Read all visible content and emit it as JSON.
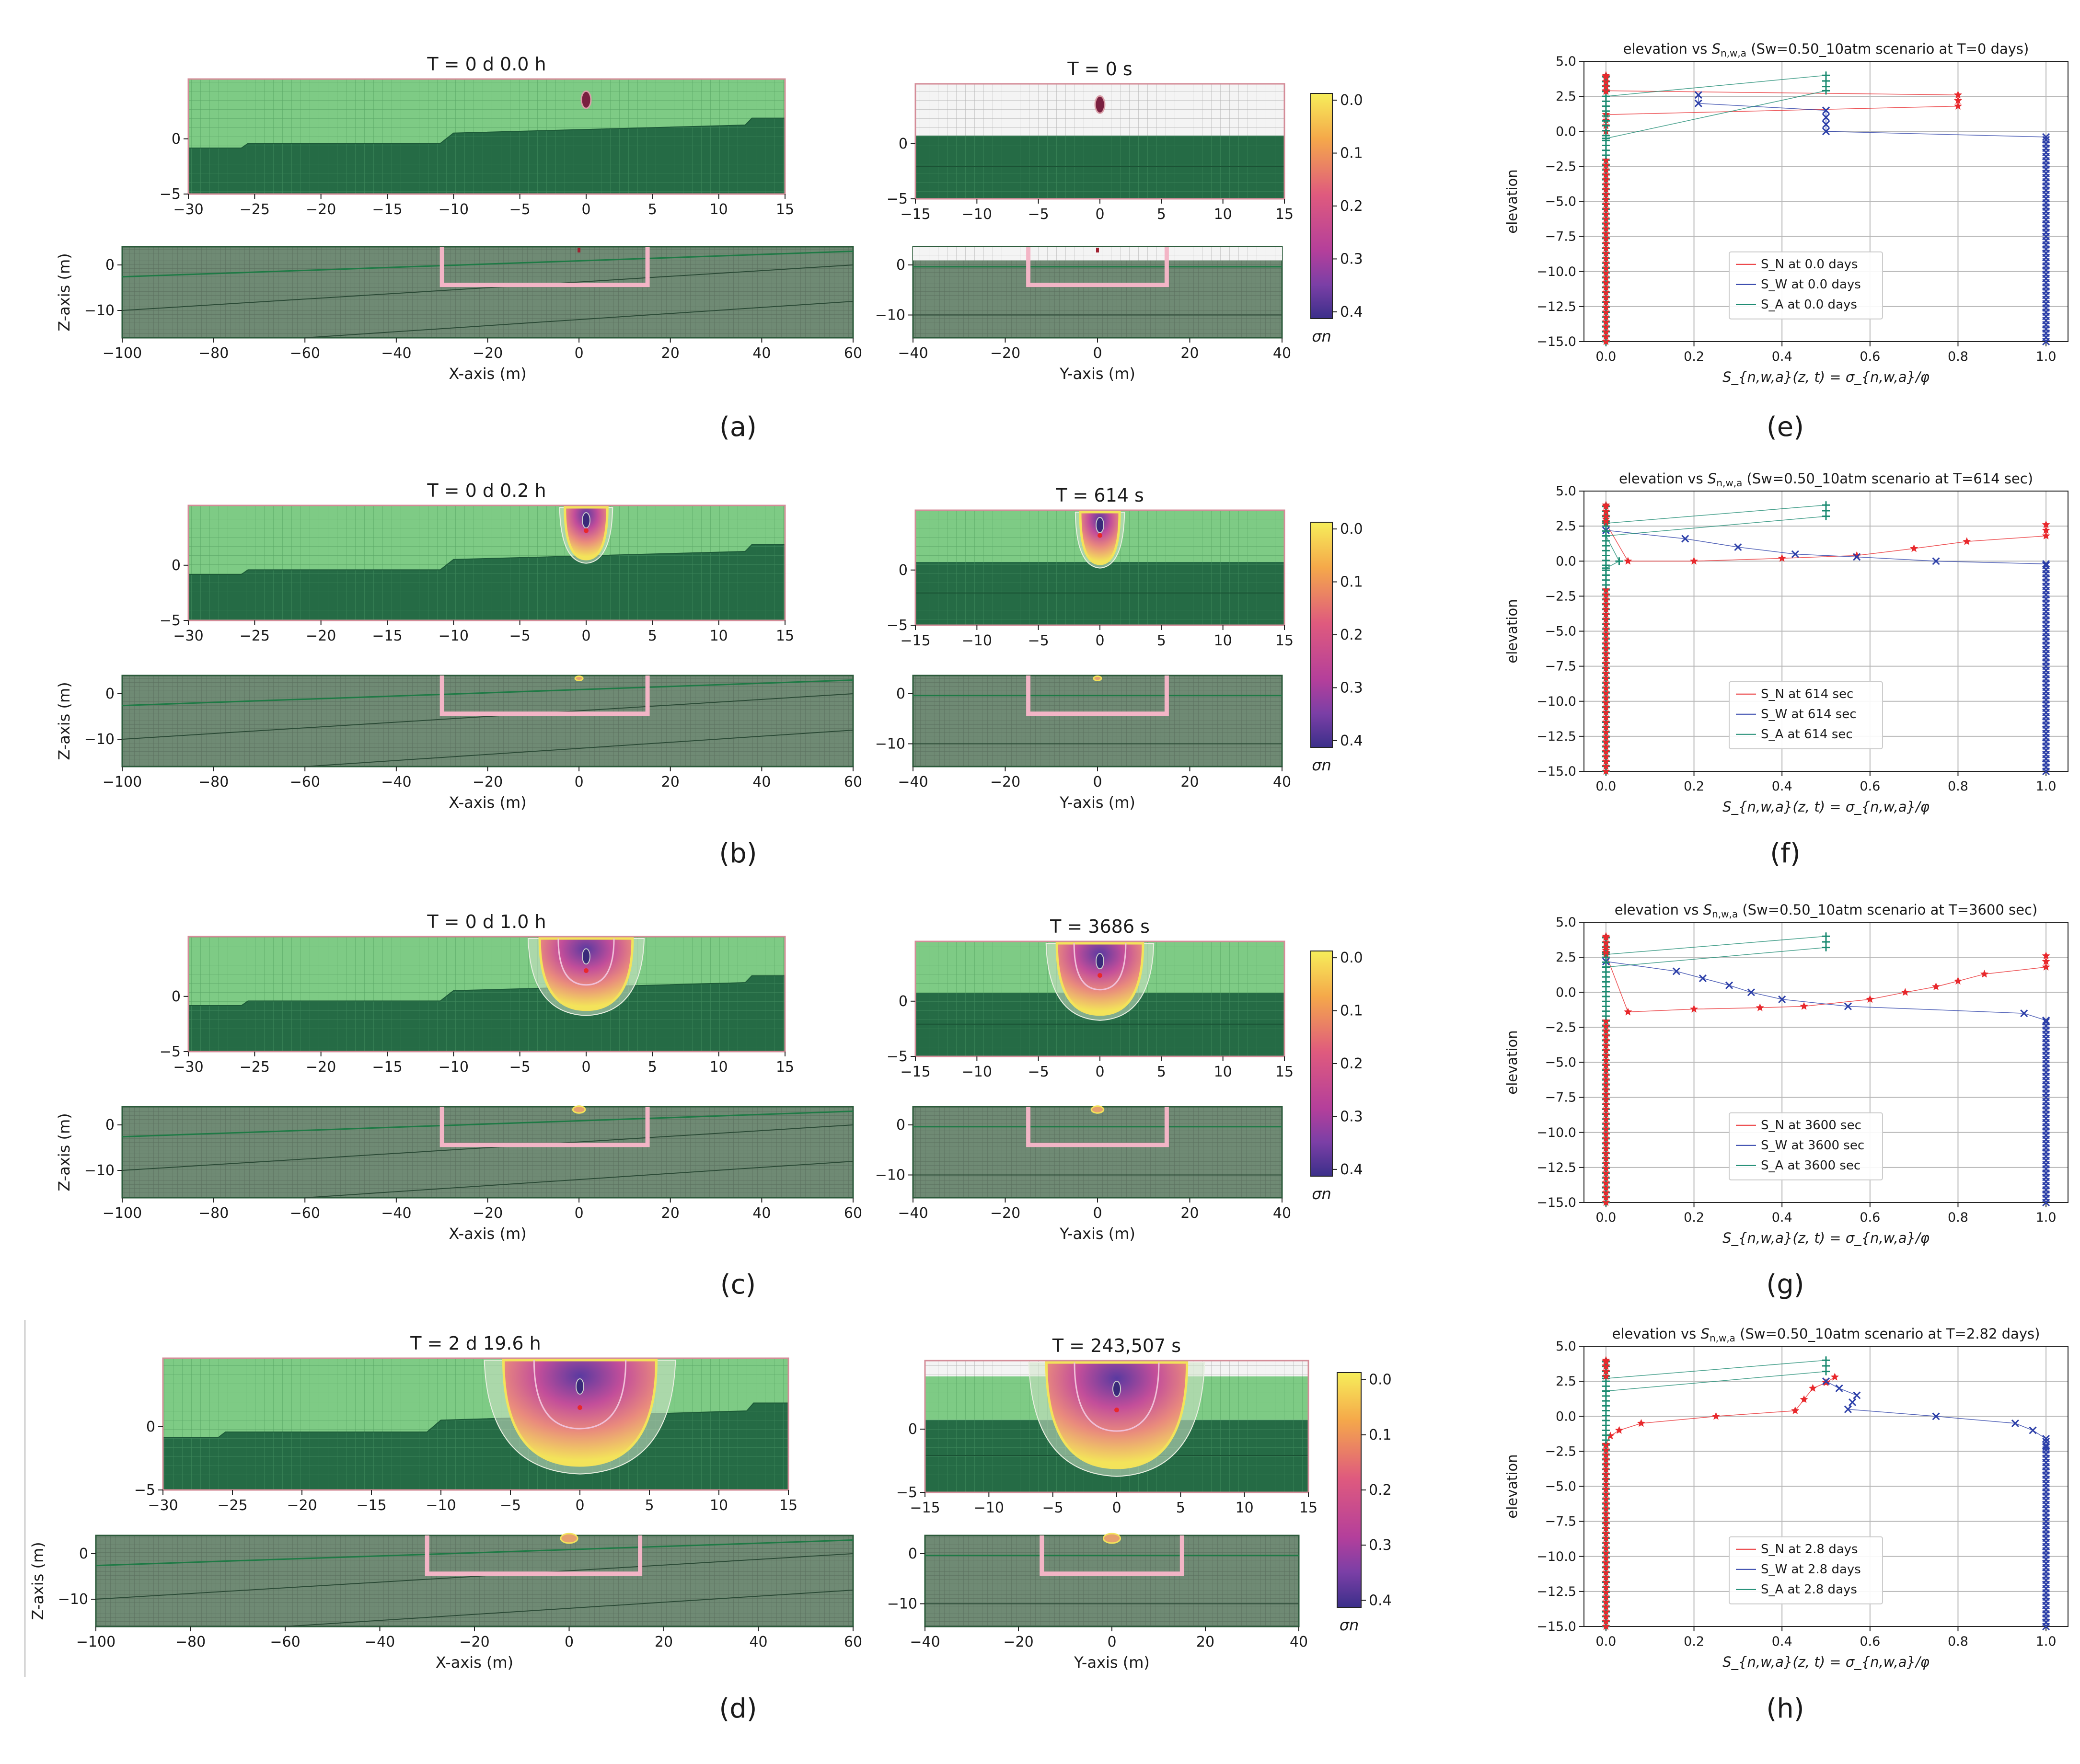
{
  "figure": {
    "tags": [
      "(a)",
      "(b)",
      "(c)",
      "(d)",
      "(e)",
      "(f)",
      "(g)",
      "(h)"
    ],
    "xlabel_x": "X-axis (m)",
    "xlabel_y": "Y-axis (m)",
    "zlabel": "Z-axis (m)",
    "colorbar_label": "σn",
    "colorbar_ticks": [
      "0.0",
      "0.1",
      "0.2",
      "0.3",
      "0.4"
    ]
  },
  "chart_data": [
    {
      "id": "a",
      "type": "heatmap",
      "title_x": "T = 0 d  0.0 h",
      "title_y": "T = 0 s",
      "top_x_ticks": [
        "−30",
        "−25",
        "−20",
        "−15",
        "−10",
        "−5",
        "0",
        "5",
        "10",
        "15"
      ],
      "top_y_ticks": [
        "−15",
        "−10",
        "−5",
        "0",
        "5",
        "10",
        "15"
      ],
      "top_z_ticks": [
        "0",
        "−5"
      ],
      "bottom_x_ticks": [
        "−100",
        "−80",
        "−60",
        "−40",
        "−20",
        "0",
        "20",
        "40",
        "60"
      ],
      "bottom_y_ticks": [
        "−40",
        "−20",
        "0",
        "20",
        "40"
      ],
      "bottom_z_ticks": [
        "0",
        "−10"
      ],
      "plume_stage": 0,
      "top_grid_light": false,
      "colorbar_range": [
        0.0,
        0.4
      ]
    },
    {
      "id": "b",
      "type": "heatmap",
      "title_x": "T = 0 d  0.2 h",
      "title_y": "T = 614 s",
      "top_x_ticks": [
        "−30",
        "−25",
        "−20",
        "−15",
        "−10",
        "−5",
        "0",
        "5",
        "10",
        "15"
      ],
      "top_y_ticks": [
        "−15",
        "−10",
        "−5",
        "0",
        "5",
        "10",
        "15"
      ],
      "top_z_ticks": [
        "0",
        "−5"
      ],
      "bottom_x_ticks": [
        "−100",
        "−80",
        "−60",
        "−40",
        "−20",
        "0",
        "20",
        "40",
        "60"
      ],
      "bottom_y_ticks": [
        "−40",
        "−20",
        "0",
        "20",
        "40"
      ],
      "bottom_z_ticks": [
        "0",
        "−10"
      ],
      "plume_stage": 1,
      "top_grid_light": false,
      "colorbar_range": [
        0.0,
        0.4
      ]
    },
    {
      "id": "c",
      "type": "heatmap",
      "title_x": "T = 0 d  1.0 h",
      "title_y": "T = 3686 s",
      "top_x_ticks": [
        "−30",
        "−25",
        "−20",
        "−15",
        "−10",
        "−5",
        "0",
        "5",
        "10",
        "15"
      ],
      "top_y_ticks": [
        "−15",
        "−10",
        "−5",
        "0",
        "5",
        "10",
        "15"
      ],
      "top_z_ticks": [
        "0",
        "−5"
      ],
      "bottom_x_ticks": [
        "−100",
        "−80",
        "−60",
        "−40",
        "−20",
        "0",
        "20",
        "40",
        "60"
      ],
      "bottom_y_ticks": [
        "−40",
        "−20",
        "0",
        "20",
        "40"
      ],
      "bottom_z_ticks": [
        "0",
        "−10"
      ],
      "plume_stage": 2,
      "top_grid_light": false,
      "colorbar_range": [
        0.0,
        0.4
      ]
    },
    {
      "id": "d",
      "type": "heatmap",
      "title_x": "T = 2 d 19.6 h",
      "title_y": "T = 243,507 s",
      "top_x_ticks": [
        "−30",
        "−25",
        "−20",
        "−15",
        "−10",
        "−5",
        "0",
        "5",
        "10",
        "15"
      ],
      "top_y_ticks": [
        "−15",
        "−10",
        "−5",
        "0",
        "5",
        "10",
        "15"
      ],
      "top_z_ticks": [
        "0",
        "−5"
      ],
      "bottom_x_ticks": [
        "−100",
        "−80",
        "−60",
        "−40",
        "−20",
        "0",
        "20",
        "40",
        "60"
      ],
      "bottom_y_ticks": [
        "−40",
        "−20",
        "0",
        "20",
        "40"
      ],
      "bottom_z_ticks": [
        "0",
        "−10"
      ],
      "plume_stage": 3,
      "top_grid_light": false,
      "colorbar_range": [
        0.0,
        0.4
      ]
    },
    {
      "id": "e",
      "type": "line",
      "title_pre": "elevation vs ",
      "title_var": "S",
      "title_sub": "n,w,a",
      "title_post": " (Sw=0.50_10atm scenario at T=0 days)",
      "xlabel": "S_{n,w,a}(z, t) = σ_{n,w,a}/φ",
      "ylabel": "elevation",
      "xlim": [
        -0.05,
        1.05
      ],
      "ylim": [
        -15,
        5
      ],
      "xticks": [
        0.0,
        0.2,
        0.4,
        0.6,
        0.8,
        1.0
      ],
      "xtick_labels": [
        "0.0",
        "0.2",
        "0.4",
        "0.6",
        "0.8",
        "1.0"
      ],
      "yticks": [
        5,
        2.5,
        0,
        -2.5,
        -5,
        -7.5,
        -10,
        -12.5,
        -15
      ],
      "ytick_labels": [
        "5.0",
        "2.5",
        "0.0",
        "−2.5",
        "−5.0",
        "−7.5",
        "−10.0",
        "−12.5",
        "−15.0"
      ],
      "legend": [
        "S_N at 0.0 days",
        "S_W at 0.0 days",
        "S_A at 0.0 days"
      ],
      "series": [
        {
          "name": "S_N at 0.0 days",
          "color": "#e8282c",
          "marker": "star",
          "points": [
            [
              0,
              4
            ],
            [
              0,
              3.8
            ],
            [
              0,
              3.5
            ],
            [
              0,
              3.2
            ],
            [
              0,
              2.9
            ],
            [
              0.8,
              2.6
            ],
            [
              0.8,
              2.2
            ],
            [
              0.8,
              1.8
            ],
            [
              0,
              1.2
            ],
            [
              0,
              0.8
            ],
            [
              0,
              0.4
            ],
            [
              0,
              0
            ]
          ]
        },
        {
          "name": "S_W at 0.0 days",
          "color": "#2b3ea8",
          "marker": "x",
          "points": [
            [
              0.21,
              2.6
            ],
            [
              0.21,
              2.0
            ],
            [
              0.5,
              1.5
            ],
            [
              0.5,
              1.0
            ],
            [
              0.5,
              0.5
            ],
            [
              0.5,
              0
            ],
            [
              1.0,
              -0.4
            ],
            [
              1.0,
              -15
            ]
          ]
        },
        {
          "name": "S_A at 0.0 days",
          "color": "#1a8a70",
          "marker": "plus",
          "points": [
            [
              0,
              2.5
            ],
            [
              0.5,
              4
            ],
            [
              0.5,
              3.6
            ],
            [
              0.5,
              3.2
            ],
            [
              0.5,
              2.9
            ],
            [
              0,
              -0.5
            ],
            [
              0,
              -15
            ]
          ]
        }
      ]
    },
    {
      "id": "f",
      "type": "line",
      "title_pre": "elevation vs ",
      "title_var": "S",
      "title_sub": "n,w,a",
      "title_post": " (Sw=0.50_10atm scenario at T=614 sec)",
      "xlabel": "S_{n,w,a}(z, t) = σ_{n,w,a}/φ",
      "ylabel": "elevation",
      "xlim": [
        -0.05,
        1.05
      ],
      "ylim": [
        -15,
        5
      ],
      "xticks": [
        0.0,
        0.2,
        0.4,
        0.6,
        0.8,
        1.0
      ],
      "xtick_labels": [
        "0.0",
        "0.2",
        "0.4",
        "0.6",
        "0.8",
        "1.0"
      ],
      "yticks": [
        5,
        2.5,
        0,
        -2.5,
        -5,
        -7.5,
        -10,
        -12.5,
        -15
      ],
      "ytick_labels": [
        "5.0",
        "2.5",
        "0.0",
        "−2.5",
        "−5.0",
        "−7.5",
        "−10.0",
        "−12.5",
        "−15.0"
      ],
      "legend": [
        "S_N at 614 sec",
        "S_W at 614 sec",
        "S_A at 614 sec"
      ],
      "series": [
        {
          "name": "S_N at 614 sec",
          "color": "#e8282c",
          "marker": "star",
          "points": [
            [
              0,
              4
            ],
            [
              0,
              3.5
            ],
            [
              0,
              3.0
            ],
            [
              0,
              2.7
            ],
            [
              0.05,
              0
            ],
            [
              0.2,
              0
            ],
            [
              0.4,
              0.2
            ],
            [
              0.57,
              0.4
            ],
            [
              0.7,
              0.9
            ],
            [
              0.82,
              1.4
            ],
            [
              1.0,
              1.8
            ],
            [
              1.0,
              2.2
            ],
            [
              1.0,
              2.6
            ]
          ]
        },
        {
          "name": "S_W at 614 sec",
          "color": "#2b3ea8",
          "marker": "x",
          "points": [
            [
              0,
              2.2
            ],
            [
              0.18,
              1.6
            ],
            [
              0.3,
              1.0
            ],
            [
              0.43,
              0.5
            ],
            [
              0.57,
              0.3
            ],
            [
              0.75,
              0
            ],
            [
              1.0,
              -0.2
            ],
            [
              1.0,
              -0.6
            ],
            [
              1.0,
              -15
            ]
          ]
        },
        {
          "name": "S_A at 614 sec",
          "color": "#1a8a70",
          "marker": "plus",
          "points": [
            [
              0,
              2.7
            ],
            [
              0.5,
              4
            ],
            [
              0.5,
              3.6
            ],
            [
              0.5,
              3.2
            ],
            [
              0,
              1.8
            ],
            [
              0.03,
              0
            ],
            [
              0,
              -0.5
            ],
            [
              0,
              -15
            ]
          ]
        }
      ]
    },
    {
      "id": "g",
      "type": "line",
      "title_pre": "elevation vs ",
      "title_var": "S",
      "title_sub": "n,w,a",
      "title_post": " (Sw=0.50_10atm scenario at T=3600 sec)",
      "xlabel": "S_{n,w,a}(z, t) = σ_{n,w,a}/φ",
      "ylabel": "elevation",
      "xlim": [
        -0.05,
        1.05
      ],
      "ylim": [
        -15,
        5
      ],
      "xticks": [
        0.0,
        0.2,
        0.4,
        0.6,
        0.8,
        1.0
      ],
      "xtick_labels": [
        "0.0",
        "0.2",
        "0.4",
        "0.6",
        "0.8",
        "1.0"
      ],
      "yticks": [
        5,
        2.5,
        0,
        -2.5,
        -5,
        -7.5,
        -10,
        -12.5,
        -15
      ],
      "ytick_labels": [
        "5.0",
        "2.5",
        "0.0",
        "−2.5",
        "−5.0",
        "−7.5",
        "−10.0",
        "−12.5",
        "−15.0"
      ],
      "legend": [
        "S_N at 3600 sec",
        "S_W at 3600 sec",
        "S_A at 3600 sec"
      ],
      "series": [
        {
          "name": "S_N at 3600 sec",
          "color": "#e8282c",
          "marker": "star",
          "points": [
            [
              0,
              4
            ],
            [
              0,
              3.5
            ],
            [
              0,
              3.0
            ],
            [
              0,
              2.7
            ],
            [
              0.05,
              -1.4
            ],
            [
              0.2,
              -1.2
            ],
            [
              0.35,
              -1.1
            ],
            [
              0.45,
              -1.0
            ],
            [
              0.6,
              -0.5
            ],
            [
              0.68,
              0
            ],
            [
              0.75,
              0.4
            ],
            [
              0.8,
              0.8
            ],
            [
              0.86,
              1.3
            ],
            [
              1.0,
              1.8
            ],
            [
              1.0,
              2.2
            ],
            [
              1.0,
              2.6
            ]
          ]
        },
        {
          "name": "S_W at 3600 sec",
          "color": "#2b3ea8",
          "marker": "x",
          "points": [
            [
              0,
              2.2
            ],
            [
              0.16,
              1.5
            ],
            [
              0.22,
              1.0
            ],
            [
              0.28,
              0.5
            ],
            [
              0.33,
              0
            ],
            [
              0.4,
              -0.5
            ],
            [
              0.55,
              -1.0
            ],
            [
              0.95,
              -1.5
            ],
            [
              1.0,
              -2.0
            ],
            [
              1.0,
              -15
            ]
          ]
        },
        {
          "name": "S_A at 3600 sec",
          "color": "#1a8a70",
          "marker": "plus",
          "points": [
            [
              0,
              2.7
            ],
            [
              0.5,
              4
            ],
            [
              0.5,
              3.6
            ],
            [
              0.5,
              3.2
            ],
            [
              0,
              1.8
            ],
            [
              0,
              -2.0
            ],
            [
              0,
              -15
            ]
          ]
        }
      ]
    },
    {
      "id": "h",
      "type": "line",
      "title_pre": "elevation vs ",
      "title_var": "S",
      "title_sub": "n,w,a",
      "title_post": " (Sw=0.50_10atm scenario at T=2.82 days)",
      "xlabel": "S_{n,w,a}(z, t) = σ_{n,w,a}/φ",
      "ylabel": "elevation",
      "xlim": [
        -0.05,
        1.05
      ],
      "ylim": [
        -15,
        5
      ],
      "xticks": [
        0.0,
        0.2,
        0.4,
        0.6,
        0.8,
        1.0
      ],
      "xtick_labels": [
        "0.0",
        "0.2",
        "0.4",
        "0.6",
        "0.8",
        "1.0"
      ],
      "yticks": [
        5,
        2.5,
        0,
        -2.5,
        -5,
        -7.5,
        -10,
        -12.5,
        -15
      ],
      "ytick_labels": [
        "5.0",
        "2.5",
        "0.0",
        "−2.5",
        "−5.0",
        "−7.5",
        "−10.0",
        "−12.5",
        "−15.0"
      ],
      "legend": [
        "S_N at 2.8 days",
        "S_W at 2.8 days",
        "S_A at 2.8 days"
      ],
      "series": [
        {
          "name": "S_N at 2.8 days",
          "color": "#e8282c",
          "marker": "star",
          "points": [
            [
              0,
              4
            ],
            [
              0,
              3.6
            ],
            [
              0,
              3.2
            ],
            [
              0,
              -2.0
            ],
            [
              0.01,
              -1.4
            ],
            [
              0.03,
              -1.0
            ],
            [
              0.08,
              -0.5
            ],
            [
              0.25,
              0
            ],
            [
              0.43,
              0.4
            ],
            [
              0.45,
              1.2
            ],
            [
              0.47,
              2.0
            ],
            [
              0.5,
              2.4
            ],
            [
              0.52,
              2.8
            ]
          ]
        },
        {
          "name": "S_W at 2.8 days",
          "color": "#2b3ea8",
          "marker": "x",
          "points": [
            [
              0.5,
              2.5
            ],
            [
              0.53,
              2.0
            ],
            [
              0.57,
              1.5
            ],
            [
              0.56,
              1.0
            ],
            [
              0.55,
              0.5
            ],
            [
              0.75,
              0
            ],
            [
              0.93,
              -0.5
            ],
            [
              0.97,
              -1.0
            ],
            [
              1.0,
              -1.6
            ],
            [
              1.0,
              -2.2
            ],
            [
              1.0,
              -15
            ]
          ]
        },
        {
          "name": "S_A at 2.8 days",
          "color": "#1a8a70",
          "marker": "plus",
          "points": [
            [
              0,
              2.7
            ],
            [
              0.5,
              4
            ],
            [
              0.5,
              3.6
            ],
            [
              0.5,
              3.2
            ],
            [
              0,
              1.8
            ],
            [
              0,
              -2.0
            ],
            [
              0,
              -15
            ]
          ]
        }
      ]
    }
  ]
}
